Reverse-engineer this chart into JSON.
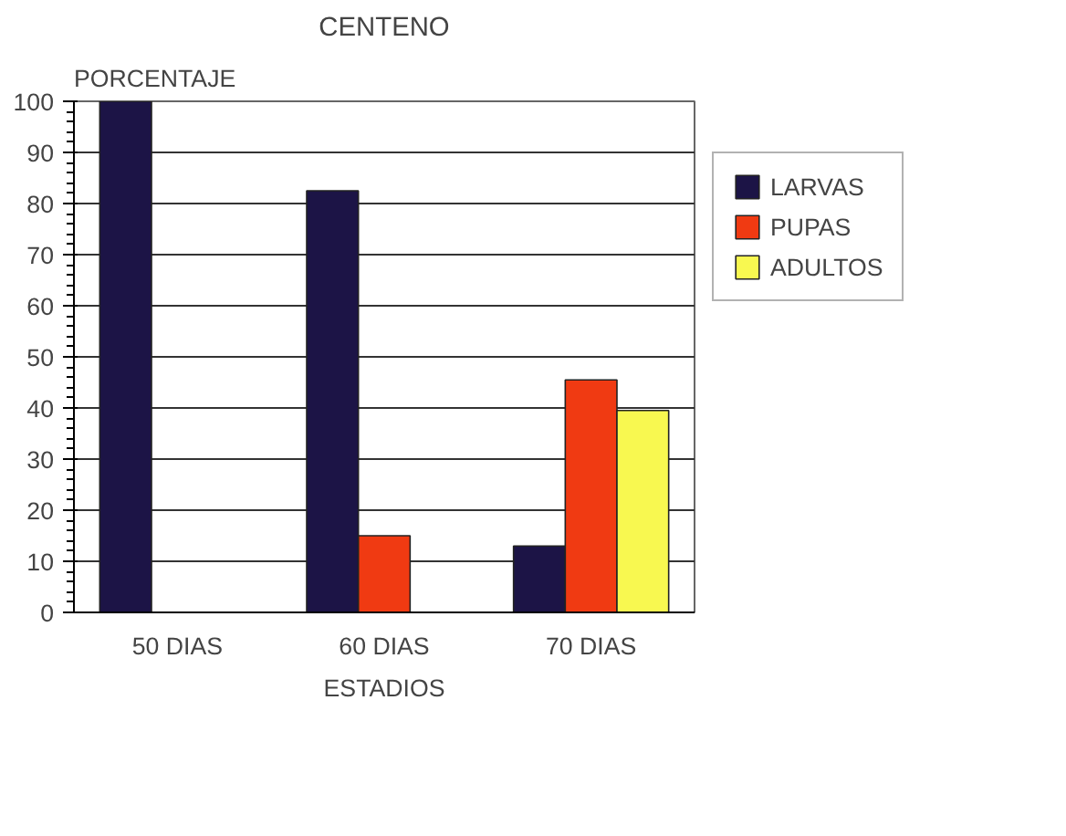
{
  "chart_data": {
    "type": "bar",
    "title": "CENTENO",
    "xlabel": "ESTADIOS",
    "ylabel": "PORCENTAJE",
    "categories": [
      "50 DIAS",
      "60 DIAS",
      "70 DIAS"
    ],
    "series": [
      {
        "name": "LARVAS",
        "color": "#1c1446",
        "values": [
          100,
          82.5,
          13
        ]
      },
      {
        "name": "PUPAS",
        "color": "#f03a12",
        "values": [
          null,
          15,
          45.5
        ]
      },
      {
        "name": "ADULTOS",
        "color": "#f8f850",
        "values": [
          null,
          null,
          39.5
        ]
      }
    ],
    "ylim": [
      0,
      100
    ],
    "yticks": [
      0,
      10,
      20,
      30,
      40,
      50,
      60,
      70,
      80,
      90,
      100
    ],
    "grid": "y",
    "legend": "top right"
  }
}
